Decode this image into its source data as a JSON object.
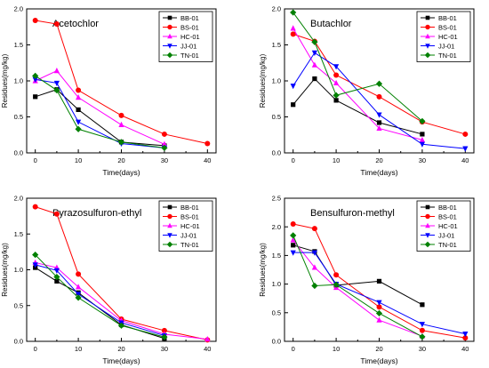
{
  "chart_data": [
    {
      "type": "line",
      "title": "Acetochlor",
      "xlabel": "Time(days)",
      "ylabel": "Residues(mg/kg)",
      "xlim": [
        -2,
        42
      ],
      "ylim": [
        0,
        2.0
      ],
      "xticks": [
        "0",
        "10",
        "20",
        "30",
        "40"
      ],
      "yticks": [
        "0.0",
        "0.5",
        "1.0",
        "1.5",
        "2.0"
      ],
      "legend_position": "top-right",
      "series": [
        {
          "name": "BB-01",
          "color": "#000000",
          "marker": "square",
          "x": [
            0,
            5,
            10,
            20,
            30
          ],
          "y": [
            0.78,
            0.88,
            0.6,
            0.15,
            0.1
          ]
        },
        {
          "name": "BS-01",
          "color": "#ff0000",
          "marker": "circle",
          "x": [
            0,
            5,
            10,
            20,
            30,
            40
          ],
          "y": [
            1.84,
            1.79,
            0.87,
            0.52,
            0.26,
            0.13
          ]
        },
        {
          "name": "HC-01",
          "color": "#ff00ff",
          "marker": "triangle-up",
          "x": [
            0,
            5,
            10,
            20,
            30
          ],
          "y": [
            1.0,
            1.14,
            0.77,
            0.39,
            0.12
          ]
        },
        {
          "name": "JJ-01",
          "color": "#0000ff",
          "marker": "triangle-down",
          "x": [
            0,
            5,
            10,
            20,
            30
          ],
          "y": [
            1.02,
            0.97,
            0.43,
            0.13,
            0.07
          ]
        },
        {
          "name": "TN-01",
          "color": "#008000",
          "marker": "diamond",
          "x": [
            0,
            5,
            10,
            20,
            30
          ],
          "y": [
            1.07,
            0.87,
            0.33,
            0.15,
            0.07
          ]
        }
      ]
    },
    {
      "type": "line",
      "title": "Butachlor",
      "xlabel": "Time(days)",
      "ylabel": "Residues(mg/kg)",
      "xlim": [
        -2,
        42
      ],
      "ylim": [
        0,
        2.0
      ],
      "xticks": [
        "0",
        "10",
        "20",
        "30",
        "40"
      ],
      "yticks": [
        "0.0",
        "0.5",
        "1.0",
        "1.5",
        "2.0"
      ],
      "legend_position": "top-right",
      "series": [
        {
          "name": "BB-01",
          "color": "#000000",
          "marker": "square",
          "x": [
            0,
            5,
            10,
            20,
            30
          ],
          "y": [
            0.67,
            1.03,
            0.73,
            0.42,
            0.26
          ]
        },
        {
          "name": "BS-01",
          "color": "#ff0000",
          "marker": "circle",
          "x": [
            0,
            5,
            10,
            20,
            30,
            40
          ],
          "y": [
            1.65,
            1.55,
            1.08,
            0.78,
            0.43,
            0.26
          ]
        },
        {
          "name": "HC-01",
          "color": "#ff00ff",
          "marker": "triangle-up",
          "x": [
            0,
            5,
            10,
            20,
            30
          ],
          "y": [
            1.73,
            1.22,
            0.97,
            0.34,
            0.18
          ]
        },
        {
          "name": "JJ-01",
          "color": "#0000ff",
          "marker": "triangle-down",
          "x": [
            0,
            5,
            10,
            20,
            30,
            40
          ],
          "y": [
            0.93,
            1.39,
            1.2,
            0.53,
            0.12,
            0.06
          ]
        },
        {
          "name": "TN-01",
          "color": "#008000",
          "marker": "diamond",
          "x": [
            0,
            5,
            10,
            20,
            30
          ],
          "y": [
            1.95,
            1.54,
            0.8,
            0.96,
            0.44
          ]
        }
      ]
    },
    {
      "type": "line",
      "title": "Pyrazosulfuron-ethyl",
      "xlabel": "Time(days)",
      "ylabel": "Residues(mg/kg)",
      "xlim": [
        -2,
        42
      ],
      "ylim": [
        0,
        2.0
      ],
      "xticks": [
        "0",
        "10",
        "20",
        "30",
        "40"
      ],
      "yticks": [
        "0.0",
        "0.5",
        "1.0",
        "1.5",
        "2.0"
      ],
      "legend_position": "top-right",
      "series": [
        {
          "name": "BB-01",
          "color": "#000000",
          "marker": "square",
          "x": [
            0,
            5,
            10,
            20,
            30
          ],
          "y": [
            1.03,
            0.84,
            0.68,
            0.23,
            0.04
          ]
        },
        {
          "name": "BS-01",
          "color": "#ff0000",
          "marker": "circle",
          "x": [
            0,
            5,
            10,
            20,
            30,
            40
          ],
          "y": [
            1.88,
            1.78,
            0.94,
            0.31,
            0.15,
            0.02
          ]
        },
        {
          "name": "HC-01",
          "color": "#ff00ff",
          "marker": "triangle-up",
          "x": [
            0,
            5,
            10,
            20,
            30,
            40
          ],
          "y": [
            1.1,
            1.03,
            0.76,
            0.29,
            0.1,
            0.03
          ]
        },
        {
          "name": "JJ-01",
          "color": "#0000ff",
          "marker": "triangle-down",
          "x": [
            0,
            5,
            10,
            20,
            30
          ],
          "y": [
            1.07,
            0.99,
            0.66,
            0.26,
            0.08
          ]
        },
        {
          "name": "TN-01",
          "color": "#008000",
          "marker": "diamond",
          "x": [
            0,
            5,
            10,
            20,
            30
          ],
          "y": [
            1.21,
            0.9,
            0.61,
            0.22,
            0.06
          ]
        }
      ]
    },
    {
      "type": "line",
      "title": "Bensulfuron-methyl",
      "xlabel": "Time(days)",
      "ylabel": "Residues(mg/kg)",
      "xlim": [
        -2,
        42
      ],
      "ylim": [
        0,
        2.5
      ],
      "xticks": [
        "0",
        "10",
        "20",
        "30",
        "40"
      ],
      "yticks": [
        "0.0",
        "0.5",
        "1.0",
        "1.5",
        "2.0",
        "2.5"
      ],
      "legend_position": "top-right",
      "series": [
        {
          "name": "BB-01",
          "color": "#000000",
          "marker": "square",
          "x": [
            0,
            5,
            10,
            20,
            30
          ],
          "y": [
            1.68,
            1.57,
            0.98,
            1.05,
            0.64
          ]
        },
        {
          "name": "BS-01",
          "color": "#ff0000",
          "marker": "circle",
          "x": [
            0,
            5,
            10,
            20,
            30,
            40
          ],
          "y": [
            2.05,
            1.97,
            1.16,
            0.6,
            0.19,
            0.06
          ]
        },
        {
          "name": "HC-01",
          "color": "#ff00ff",
          "marker": "triangle-up",
          "x": [
            0,
            5,
            10,
            20,
            30
          ],
          "y": [
            1.77,
            1.29,
            0.94,
            0.37,
            0.09
          ]
        },
        {
          "name": "JJ-01",
          "color": "#0000ff",
          "marker": "triangle-down",
          "x": [
            0,
            5,
            10,
            20,
            30,
            40
          ],
          "y": [
            1.55,
            1.55,
            1.0,
            0.68,
            0.3,
            0.13
          ]
        },
        {
          "name": "TN-01",
          "color": "#008000",
          "marker": "diamond",
          "x": [
            0,
            5,
            10,
            20,
            30
          ],
          "y": [
            1.85,
            0.97,
            0.99,
            0.49,
            0.08
          ]
        }
      ]
    }
  ]
}
